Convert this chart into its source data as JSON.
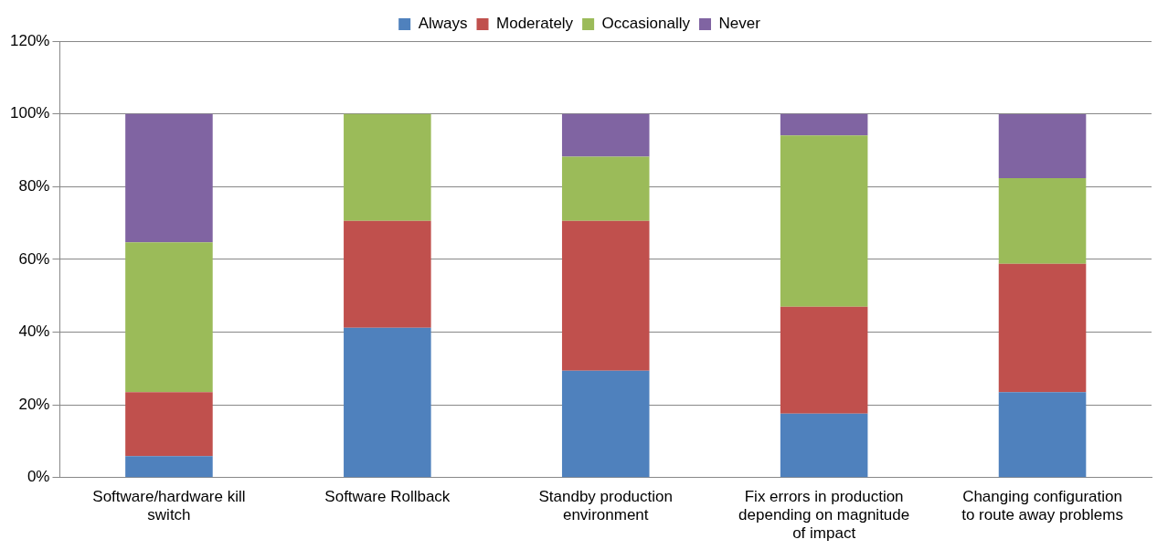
{
  "chart_data": {
    "type": "bar",
    "stacked": true,
    "categories": [
      "Software/hardware kill switch",
      "Software Rollback",
      "Standby production environment",
      "Fix errors in production depending on magnitude of impact",
      "Changing configuration to route away problems"
    ],
    "series": [
      {
        "name": "Always",
        "color": "#4f81bd",
        "values": [
          5.9,
          41.2,
          29.4,
          17.6,
          23.5
        ]
      },
      {
        "name": "Moderately",
        "color": "#c0504d",
        "values": [
          17.6,
          29.4,
          41.2,
          29.4,
          35.3
        ]
      },
      {
        "name": "Occasionally",
        "color": "#9bbb59",
        "values": [
          41.2,
          29.4,
          17.6,
          47.1,
          23.5
        ]
      },
      {
        "name": "Never",
        "color": "#8064a2",
        "values": [
          35.3,
          0,
          11.8,
          5.9,
          17.6
        ]
      }
    ],
    "ylim": [
      0,
      120
    ],
    "yticks": [
      {
        "value": 0,
        "label": "0%"
      },
      {
        "value": 20,
        "label": "20%"
      },
      {
        "value": 40,
        "label": "40%"
      },
      {
        "value": 60,
        "label": "60%"
      },
      {
        "value": 80,
        "label": "80%"
      },
      {
        "value": 100,
        "label": "100%"
      },
      {
        "value": 120,
        "label": "120%"
      }
    ],
    "grid": "y",
    "legend": "top"
  }
}
